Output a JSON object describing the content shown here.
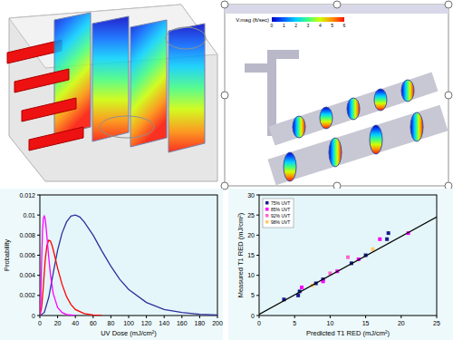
{
  "chart_data": [
    {
      "type": "line",
      "x_label": "UV Dose (mJ/cm²)",
      "y_label": "Probability",
      "xlim": [
        0,
        200
      ],
      "xticks": [
        0,
        20,
        40,
        60,
        80,
        100,
        120,
        140,
        160,
        180,
        200
      ],
      "ylim": [
        0,
        0.012
      ],
      "yticks": [
        0,
        0.002,
        0.004,
        0.006,
        0.008,
        0.01,
        0.012
      ],
      "grid": false,
      "series": [
        {
          "color": "#30309c",
          "x": [
            0,
            5,
            10,
            15,
            20,
            25,
            30,
            35,
            40,
            45,
            50,
            60,
            70,
            80,
            90,
            100,
            120,
            140,
            160,
            180,
            200
          ],
          "values": [
            0,
            0.0003,
            0.0018,
            0.0042,
            0.0065,
            0.0082,
            0.0093,
            0.0099,
            0.01,
            0.0098,
            0.0093,
            0.008,
            0.0064,
            0.0049,
            0.0036,
            0.0026,
            0.0013,
            0.0006,
            0.0003,
            0.00012,
            5e-05
          ]
        },
        {
          "color": "#ff0000",
          "x": [
            0,
            2,
            4,
            6,
            8,
            10,
            12,
            14,
            16,
            20,
            25,
            30,
            35,
            40,
            50,
            60,
            70
          ],
          "values": [
            0,
            0.0008,
            0.003,
            0.0055,
            0.007,
            0.0075,
            0.0074,
            0.0069,
            0.0062,
            0.0047,
            0.0031,
            0.0019,
            0.0011,
            0.0006,
            0.0002,
            6e-05,
            0
          ]
        },
        {
          "color": "#ff00ff",
          "x": [
            0,
            1,
            2,
            3,
            4,
            5,
            6,
            7,
            8,
            10,
            12,
            15,
            20,
            25,
            30,
            40
          ],
          "values": [
            0,
            0.0015,
            0.0055,
            0.0085,
            0.0097,
            0.0099,
            0.0096,
            0.0088,
            0.0078,
            0.0058,
            0.004,
            0.0022,
            0.0008,
            0.0003,
            0.0001,
            0
          ]
        }
      ]
    },
    {
      "type": "scatter",
      "x_label": "Predicted T1 RED (mJ/cm²)",
      "y_label": "Measured T1 RED (mJ/cm²)",
      "xlim": [
        0,
        25
      ],
      "xticks": [
        0,
        5,
        10,
        15,
        20,
        25
      ],
      "ylim": [
        0,
        30
      ],
      "yticks": [
        0,
        5,
        10,
        15,
        20,
        25,
        30
      ],
      "grid": false,
      "legend": "upper-left",
      "series": [
        {
          "name": "75% UVT",
          "color": "#1c1c8c",
          "marker": "square",
          "x": [
            3.5,
            5.5,
            5.7,
            8,
            9,
            13,
            15,
            18,
            18.2
          ],
          "values": [
            4,
            5,
            6,
            8,
            9,
            13,
            15,
            19,
            20.5
          ]
        },
        {
          "name": "85% UVT",
          "color": "#ff00ff",
          "marker": "square",
          "x": [
            6,
            9,
            11,
            14,
            17,
            21
          ],
          "values": [
            7,
            8.5,
            11,
            14,
            19,
            20.5
          ]
        },
        {
          "name": "92% UVT",
          "color": "#ff66cc",
          "marker": "square",
          "x": [
            10,
            12.5
          ],
          "values": [
            10.5,
            14.5
          ]
        },
        {
          "name": "98% UVT",
          "color": "#ffcc66",
          "marker": "square",
          "x": [
            7.5,
            16
          ],
          "values": [
            7.5,
            16.5
          ]
        },
        {
          "type": "line",
          "color": "#000000",
          "line_style": "solid",
          "x": [
            0,
            25
          ],
          "values": [
            0.3,
            24.5
          ]
        }
      ]
    }
  ],
  "cfd_view": {
    "colorbar": {
      "label": "V.mag (ft/sec)",
      "ticks": [
        0,
        1,
        2,
        3,
        4,
        5,
        6
      ]
    }
  }
}
